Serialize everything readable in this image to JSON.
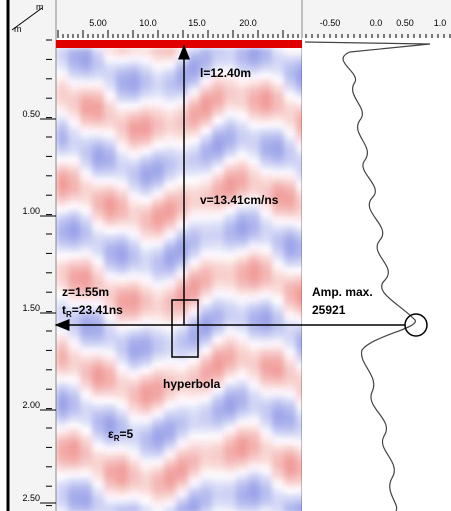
{
  "axis_corner": {
    "top_unit": "m",
    "left_unit": "m"
  },
  "top_axis": {
    "ticks": [
      "5.00",
      "10.0",
      "15.0",
      "20.0"
    ]
  },
  "trace_axis": {
    "ticks": [
      "-0.50",
      "0.0",
      "0.50",
      "1.0"
    ]
  },
  "depth_axis": {
    "ticks": [
      "0.50",
      "1.00",
      "1.50",
      "2.00",
      "2.50"
    ]
  },
  "annotations": {
    "length": "l=12.40m",
    "velocity": "v=13.41cm/ns",
    "depth": "z=1.55m",
    "time": {
      "base": "t",
      "sub": "R",
      "rest": "=23.41ns"
    },
    "amplitude_label": "Amp. max.",
    "amplitude_value": "25921",
    "hyperbola": "hyperbola",
    "permittivity": {
      "base": "ε",
      "sub": "R",
      "rest": "=5"
    }
  }
}
